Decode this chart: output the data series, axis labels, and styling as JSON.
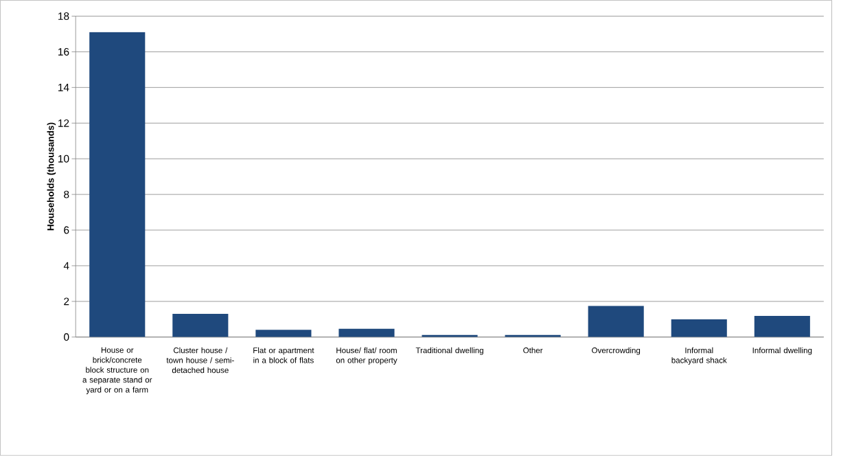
{
  "chart_data": {
    "type": "bar",
    "ylabel": "Households (thousands)",
    "categories": [
      "House or brick/concrete block structure on a separate stand or yard or on a farm",
      "Cluster house / town house / semi-detached house",
      "Flat or apartment in a block of flats",
      "House/ flat/ room on other property",
      "Traditional dwelling",
      "Other",
      "Overcrowding",
      "Informal backyard shack",
      "Informal dwelling"
    ],
    "values": [
      17.1,
      1.3,
      0.41,
      0.46,
      0.12,
      0.12,
      1.74,
      0.99,
      1.19
    ],
    "color": "#1f497d",
    "ylim": [
      0,
      18
    ],
    "yticks": [
      0,
      2,
      4,
      6,
      8,
      10,
      12,
      14,
      16,
      18
    ],
    "grid": "y"
  }
}
